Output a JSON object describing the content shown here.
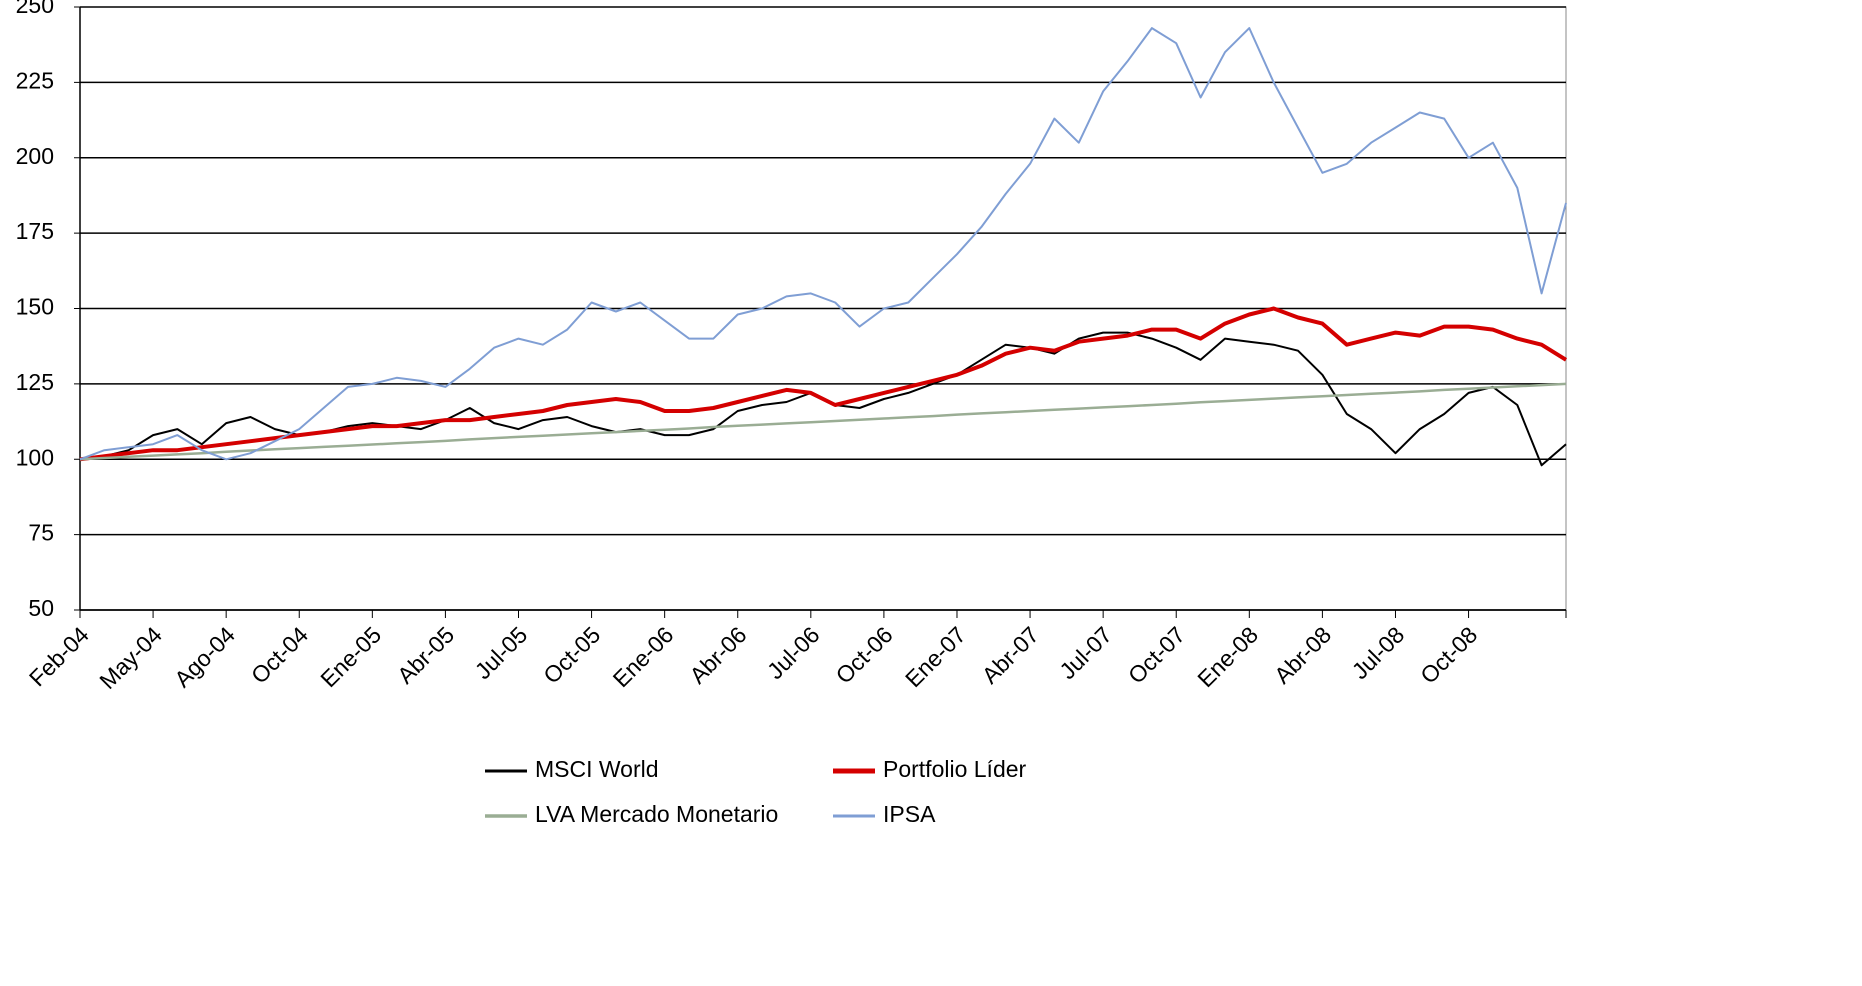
{
  "chart_data": {
    "type": "line",
    "categories": [
      "Feb-04",
      null,
      null,
      "May-04",
      null,
      null,
      "Ago-04",
      null,
      null,
      "Oct-04",
      null,
      null,
      "Ene-05",
      null,
      null,
      "Abr-05",
      null,
      null,
      "Jul-05",
      null,
      null,
      "Oct-05",
      null,
      null,
      "Ene-06",
      null,
      null,
      "Abr-06",
      null,
      null,
      "Jul-06",
      null,
      null,
      "Oct-06",
      null,
      null,
      "Ene-07",
      null,
      null,
      "Abr-07",
      null,
      null,
      "Jul-07",
      null,
      null,
      "Oct-07",
      null,
      null,
      "Ene-08",
      null,
      null,
      "Abr-08",
      null,
      null,
      "Jul-08",
      null,
      null,
      "Oct-08",
      null,
      null,
      null,
      null
    ],
    "series": [
      {
        "name": "MSCI World",
        "color": "#000000",
        "line_width": 2,
        "values": [
          100,
          101,
          103,
          108,
          110,
          105,
          112,
          114,
          110,
          108,
          109,
          111,
          112,
          111,
          110,
          113,
          117,
          112,
          110,
          113,
          114,
          111,
          109,
          110,
          108,
          108,
          110,
          116,
          118,
          119,
          122,
          118,
          117,
          120,
          122,
          125,
          128,
          133,
          138,
          137,
          135,
          140,
          142,
          142,
          140,
          137,
          133,
          140,
          139,
          138,
          136,
          128,
          115,
          110,
          102,
          110,
          115,
          122,
          124,
          118,
          98,
          105
        ]
      },
      {
        "name": "Portfolio Líder",
        "color": "#d40000",
        "line_width": 4,
        "values": [
          100,
          101,
          102,
          103,
          103,
          104,
          105,
          106,
          107,
          108,
          109,
          110,
          111,
          111,
          112,
          113,
          113,
          114,
          115,
          116,
          118,
          119,
          120,
          119,
          116,
          116,
          117,
          119,
          121,
          123,
          122,
          118,
          120,
          122,
          124,
          126,
          128,
          131,
          135,
          137,
          136,
          139,
          140,
          141,
          143,
          143,
          140,
          145,
          148,
          150,
          147,
          145,
          138,
          140,
          142,
          141,
          144,
          144,
          143,
          140,
          138,
          133
        ]
      },
      {
        "name": "LVA Mercado Monetario",
        "color": "#9aad94",
        "line_width": 2.5,
        "values": [
          100,
          100.4,
          100.8,
          101.2,
          101.6,
          102,
          102.5,
          102.9,
          103.3,
          103.7,
          104.1,
          104.5,
          104.9,
          105.3,
          105.7,
          106.1,
          106.6,
          107,
          107.4,
          107.8,
          108.2,
          108.6,
          109,
          109.4,
          109.8,
          110.2,
          110.7,
          111.1,
          111.5,
          111.9,
          112.3,
          112.7,
          113.1,
          113.5,
          113.9,
          114.3,
          114.8,
          115.2,
          115.6,
          116,
          116.4,
          116.8,
          117.2,
          117.6,
          118,
          118.4,
          118.9,
          119.3,
          119.7,
          120.1,
          120.5,
          120.9,
          121.3,
          121.7,
          122.1,
          122.5,
          123,
          123.4,
          123.8,
          124.2,
          124.6,
          125
        ]
      },
      {
        "name": "IPSA",
        "color": "#7f9ed4",
        "line_width": 2,
        "values": [
          100,
          103,
          104,
          105,
          108,
          103,
          100,
          102,
          106,
          110,
          117,
          124,
          125,
          127,
          126,
          124,
          130,
          137,
          140,
          138,
          143,
          152,
          149,
          152,
          146,
          140,
          140,
          148,
          150,
          154,
          155,
          152,
          144,
          150,
          152,
          160,
          168,
          177,
          188,
          198,
          213,
          205,
          222,
          232,
          243,
          238,
          220,
          235,
          243,
          225,
          210,
          195,
          198,
          205,
          210,
          215,
          213,
          200,
          205,
          190,
          155,
          185
        ]
      }
    ],
    "ylim": [
      50,
      250
    ],
    "yticks": [
      50,
      75,
      100,
      125,
      150,
      175,
      200,
      225,
      250
    ],
    "grid": true
  }
}
